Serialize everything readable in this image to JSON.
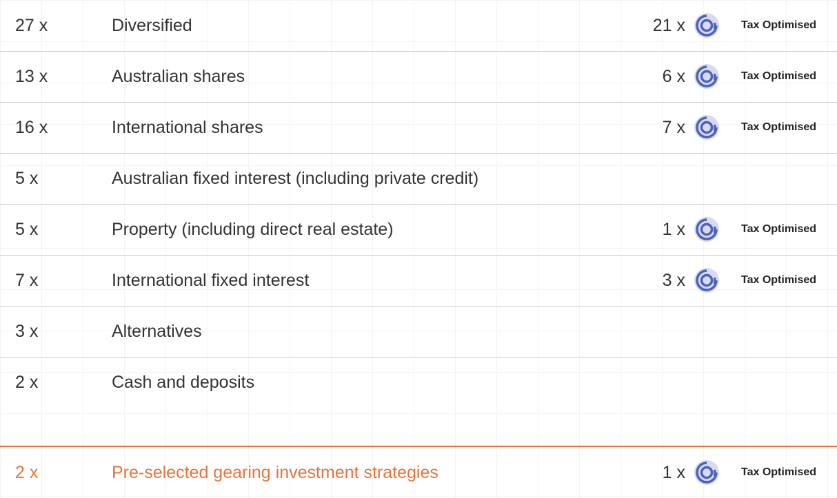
{
  "rows": [
    {
      "count": "27 x",
      "name": "Diversified",
      "tax_count": "21 x",
      "tax_label": "Tax Optimised"
    },
    {
      "count": "13 x",
      "name": "Australian shares",
      "tax_count": "6 x",
      "tax_label": "Tax Optimised"
    },
    {
      "count": "16 x",
      "name": "International shares",
      "tax_count": "7 x",
      "tax_label": "Tax Optimised"
    },
    {
      "count": "5 x",
      "name": "Australian fixed interest (including private credit)"
    },
    {
      "count": "5 x",
      "name": "Property (including direct real estate)",
      "tax_count": "1 x",
      "tax_label": "Tax Optimised"
    },
    {
      "count": "7 x",
      "name": "International fixed interest",
      "tax_count": "3 x",
      "tax_label": "Tax Optimised"
    },
    {
      "count": "3 x",
      "name": "Alternatives"
    },
    {
      "count": "2 x",
      "name": "Cash and deposits"
    }
  ],
  "highlight": {
    "count": "2 x",
    "name": "Pre-selected gearing investment strategies",
    "tax_count": "1 x",
    "tax_label": "Tax Optimised"
  }
}
